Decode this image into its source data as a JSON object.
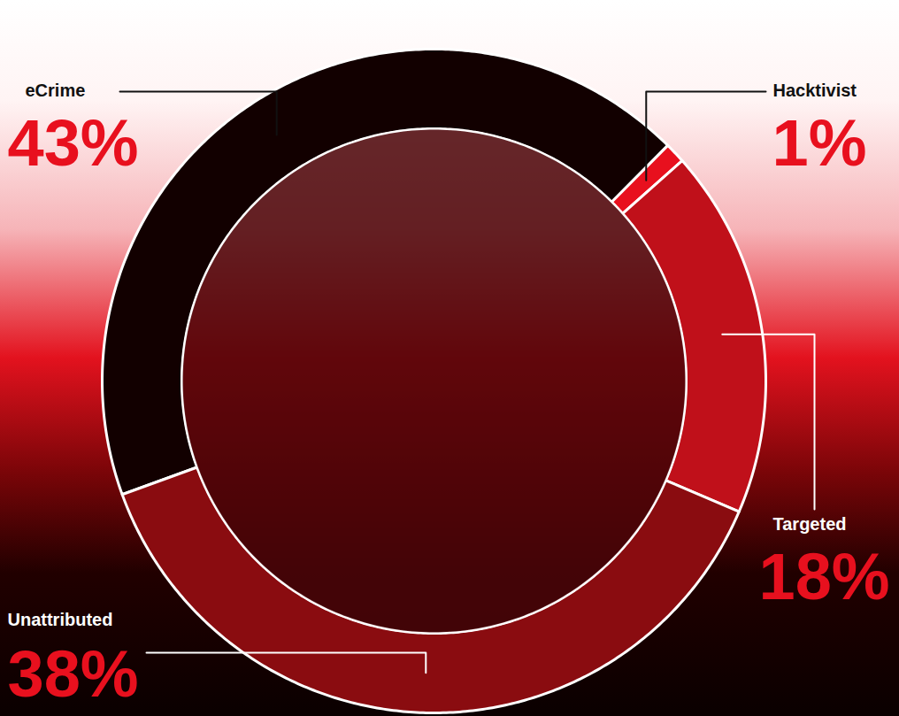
{
  "chart_data": {
    "type": "donut",
    "categories": [
      "eCrime",
      "Hacktivist",
      "Targeted",
      "Unattributed"
    ],
    "values": [
      43,
      1,
      18,
      38
    ],
    "value_labels": [
      "43%",
      "1%",
      "18%",
      "38%"
    ],
    "colors": [
      "#120000",
      "#e8101e",
      "#c0101a",
      "#8a0c10"
    ],
    "data_labels": true,
    "tick_labels": false
  }
}
